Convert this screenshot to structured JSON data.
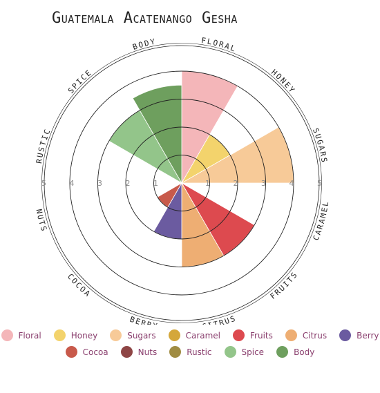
{
  "chart_data": {
    "type": "polar-area",
    "title": "Guatemala Acatenango Gesha",
    "r_ticks": [
      "1",
      "2",
      "3",
      "4",
      "5"
    ],
    "r_max": 5,
    "categories": [
      "Floral",
      "Honey",
      "Sugars",
      "Caramel",
      "Fruits",
      "Citrus",
      "Berry",
      "Cocoa",
      "Nuts",
      "Rustic",
      "Spice",
      "Body"
    ],
    "axis_labels": [
      "FLORAL",
      "HONEY",
      "SUGARS",
      "CARAMEL",
      "FRUITS",
      "CITRUS",
      "BERRY",
      "COCOA",
      "NUTS",
      "RUSTIC",
      "SPICE",
      "BODY"
    ],
    "values": [
      4,
      2,
      4,
      0,
      3,
      3,
      2,
      1,
      0,
      0,
      3,
      3.5
    ],
    "colors": [
      "#f4b6b9",
      "#f3d36c",
      "#f7ca98",
      "#d4a73a",
      "#dd4a4f",
      "#eeae73",
      "#6b5ba0",
      "#c85a4b",
      "#8e4545",
      "#a08c42",
      "#93c58a",
      "#6e9f5e"
    ],
    "legend_position": "bottom",
    "grid": true
  }
}
